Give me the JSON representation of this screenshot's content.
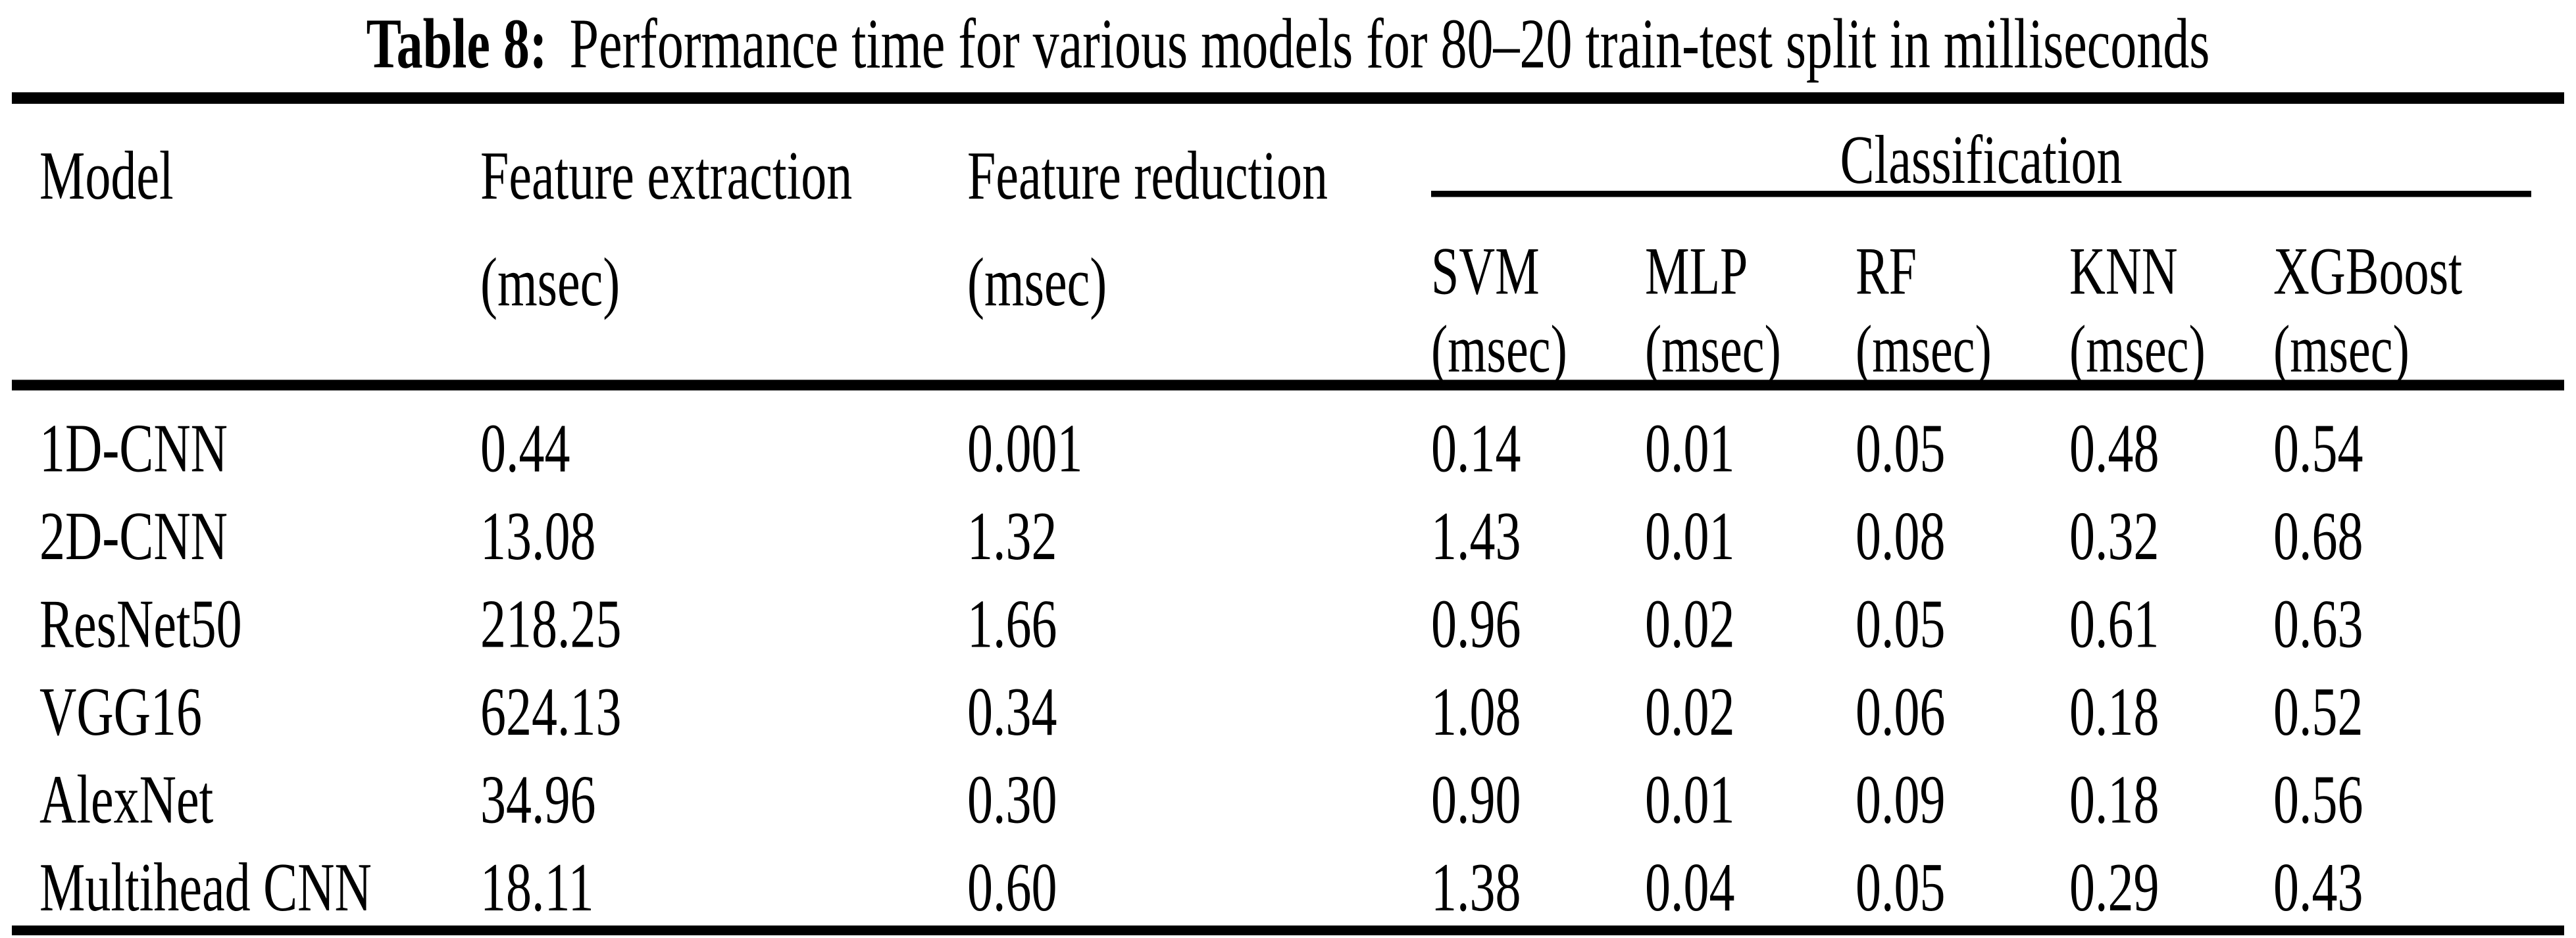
{
  "caption": {
    "label": "Table 8:",
    "text": "Performance time for various models for 80–20 train-test split in milliseconds"
  },
  "table": {
    "header": {
      "model": "Model",
      "feature_extraction": {
        "name": "Feature extraction",
        "unit": "(msec)"
      },
      "feature_reduction": {
        "name": "Feature reduction",
        "unit": "(msec)"
      },
      "classification": {
        "label": "Classification",
        "columns": [
          {
            "name": "SVM",
            "unit": "(msec)"
          },
          {
            "name": "MLP",
            "unit": "(msec)"
          },
          {
            "name": "RF",
            "unit": "(msec)"
          },
          {
            "name": "KNN",
            "unit": "(msec)"
          },
          {
            "name": "XGBoost",
            "unit": "(msec)"
          }
        ]
      }
    },
    "rows": [
      {
        "model": "1D-CNN",
        "feature_extraction": "0.44",
        "feature_reduction": "0.001",
        "svm": "0.14",
        "mlp": "0.01",
        "rf": "0.05",
        "knn": "0.48",
        "xgboost": "0.54"
      },
      {
        "model": "2D-CNN",
        "feature_extraction": "13.08",
        "feature_reduction": "1.32",
        "svm": "1.43",
        "mlp": "0.01",
        "rf": "0.08",
        "knn": "0.32",
        "xgboost": "0.68"
      },
      {
        "model": "ResNet50",
        "feature_extraction": "218.25",
        "feature_reduction": "1.66",
        "svm": "0.96",
        "mlp": "0.02",
        "rf": "0.05",
        "knn": "0.61",
        "xgboost": "0.63"
      },
      {
        "model": "VGG16",
        "feature_extraction": "624.13",
        "feature_reduction": "0.34",
        "svm": "1.08",
        "mlp": "0.02",
        "rf": "0.06",
        "knn": "0.18",
        "xgboost": "0.52"
      },
      {
        "model": "AlexNet",
        "feature_extraction": "34.96",
        "feature_reduction": "0.30",
        "svm": "0.90",
        "mlp": "0.01",
        "rf": "0.09",
        "knn": "0.18",
        "xgboost": "0.56"
      },
      {
        "model": "Multihead CNN",
        "feature_extraction": "18.11",
        "feature_reduction": "0.60",
        "svm": "1.38",
        "mlp": "0.04",
        "rf": "0.05",
        "knn": "0.29",
        "xgboost": "0.43"
      }
    ]
  },
  "colors": {
    "text": "#000000",
    "background": "#ffffff",
    "rule": "#000000"
  }
}
